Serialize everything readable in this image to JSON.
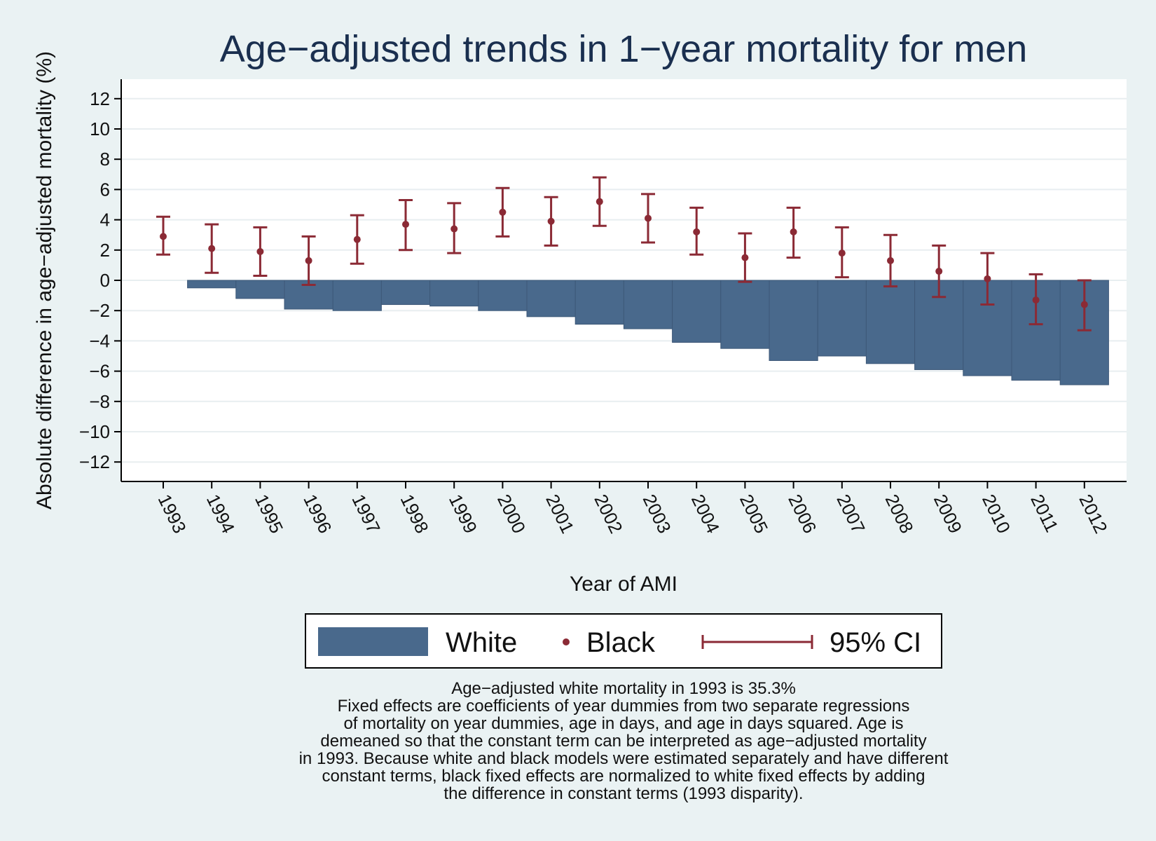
{
  "chart_data": {
    "type": "bar",
    "title": "Age−adjusted trends in 1−year mortality for men",
    "xlabel": "Year of AMI",
    "ylabel": "Absolute difference in age−adjusted mortality (%)",
    "ylim": [
      -13,
      13.5
    ],
    "yticks": [
      12,
      10,
      8,
      6,
      4,
      2,
      0,
      -2,
      -4,
      -6,
      -8,
      -10,
      -12
    ],
    "ytick_labels": [
      "12",
      "10",
      "8",
      "6",
      "4",
      "2",
      "0",
      "−2",
      "−4",
      "−6",
      "−8",
      "−10",
      "−12"
    ],
    "grid": true,
    "categories": [
      "1993",
      "1994",
      "1995",
      "1996",
      "1997",
      "1998",
      "1999",
      "2000",
      "2001",
      "2002",
      "2003",
      "2004",
      "2005",
      "2006",
      "2007",
      "2008",
      "2009",
      "2010",
      "2011",
      "2012"
    ],
    "series": [
      {
        "name": "White",
        "kind": "bar",
        "color": "#49698c",
        "values": [
          0,
          -0.5,
          -1.2,
          -1.9,
          -2.0,
          -1.6,
          -1.7,
          -2.0,
          -2.4,
          -2.9,
          -3.2,
          -4.1,
          -4.5,
          -5.3,
          -5.0,
          -5.5,
          -5.9,
          -6.3,
          -6.6,
          -6.9
        ]
      },
      {
        "name": "Black",
        "kind": "point",
        "color": "#8b2a35",
        "values": [
          2.9,
          2.1,
          1.9,
          1.3,
          2.7,
          3.7,
          3.4,
          4.5,
          3.9,
          5.2,
          4.1,
          3.2,
          1.5,
          3.2,
          1.8,
          1.3,
          0.6,
          0.1,
          -1.3,
          -1.6
        ],
        "ci_low": [
          1.7,
          0.5,
          0.3,
          -0.3,
          1.1,
          2.0,
          1.8,
          2.9,
          2.3,
          3.6,
          2.5,
          1.7,
          -0.1,
          1.5,
          0.2,
          -0.4,
          -1.1,
          -1.6,
          -2.9,
          -3.3
        ],
        "ci_high": [
          4.2,
          3.7,
          3.5,
          2.9,
          4.3,
          5.3,
          5.1,
          6.1,
          5.5,
          6.8,
          5.7,
          4.8,
          3.1,
          4.8,
          3.5,
          3.0,
          2.3,
          1.8,
          0.4,
          0.0
        ]
      }
    ],
    "legend": {
      "position": "bottom",
      "entries": [
        "White",
        "Black",
        "95% CI"
      ]
    }
  },
  "note_lines": [
    "Age−adjusted white mortality in 1993 is 35.3%",
    "Fixed effects are coefficients of year dummies from two separate regressions",
    "of mortality on year dummies, age in days, and age in days squared. Age is",
    "demeaned so that the constant term can be interpreted as age−adjusted mortality",
    "in 1993. Because white and black models were estimated separately and have different",
    "constant terms, black fixed effects are normalized to white fixed effects by adding",
    "the difference in constant terms (1993 disparity)."
  ]
}
